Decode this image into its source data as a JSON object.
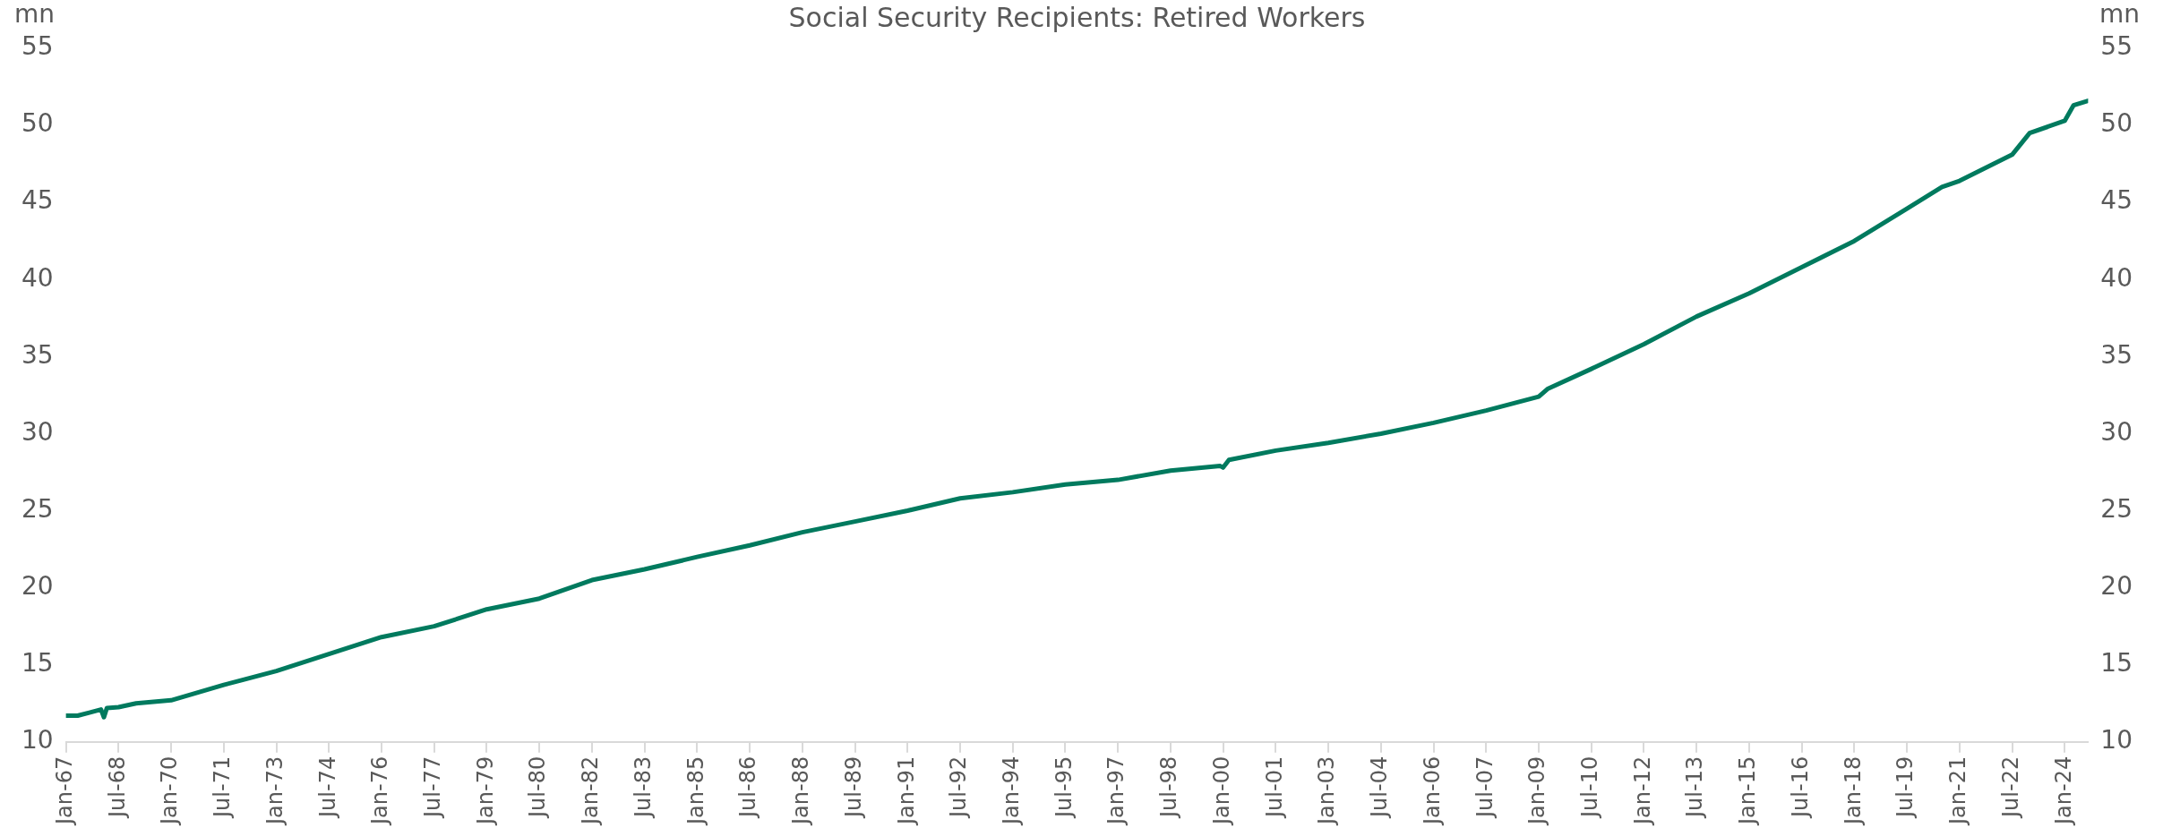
{
  "chart_data": {
    "type": "line",
    "title": "Social Security Recipients: Retired Workers",
    "ylabel": "mn",
    "y2label": "mn",
    "x": [
      "1967-01",
      "1967-05",
      "1967-09",
      "1968-01",
      "1968-02",
      "1968-03",
      "1968-07",
      "1969-01",
      "1970-01",
      "1971-07",
      "1973-01",
      "1974-07",
      "1976-01",
      "1977-07",
      "1979-01",
      "1980-07",
      "1982-01",
      "1983-07",
      "1985-01",
      "1986-07",
      "1988-01",
      "1989-07",
      "1991-01",
      "1992-07",
      "1994-01",
      "1995-07",
      "1997-01",
      "1998-07",
      "1999-12",
      "2000-01",
      "2000-03",
      "2001-07",
      "2003-01",
      "2004-07",
      "2006-01",
      "2007-07",
      "2009-01",
      "2009-04",
      "2010-07",
      "2012-01",
      "2013-07",
      "2015-01",
      "2016-07",
      "2018-01",
      "2019-07",
      "2020-07",
      "2021-01",
      "2022-07",
      "2023-01",
      "2024-01",
      "2024-04",
      "2024-09"
    ],
    "series": [
      {
        "color": "#007a5e",
        "values": [
          11.7,
          11.7,
          11.9,
          12.1,
          11.6,
          12.2,
          12.25,
          12.5,
          12.7,
          13.7,
          14.6,
          15.7,
          16.8,
          17.5,
          18.6,
          19.3,
          20.5,
          21.2,
          22.0,
          22.75,
          23.6,
          24.3,
          25.0,
          25.8,
          26.2,
          26.7,
          27.0,
          27.6,
          27.9,
          27.8,
          28.3,
          28.9,
          29.4,
          30.0,
          30.7,
          31.5,
          32.4,
          32.9,
          34.2,
          35.8,
          37.6,
          39.1,
          40.8,
          42.5,
          44.6,
          46.0,
          46.4,
          48.1,
          49.5,
          50.3,
          51.3,
          51.6
        ]
      }
    ],
    "xlim": [
      "1967-01",
      "2024-09"
    ],
    "xticks": [
      {
        "value": "1967-01",
        "label": "Jan-67"
      },
      {
        "value": "1968-07",
        "label": "Jul-68"
      },
      {
        "value": "1970-01",
        "label": "Jan-70"
      },
      {
        "value": "1971-07",
        "label": "Jul-71"
      },
      {
        "value": "1973-01",
        "label": "Jan-73"
      },
      {
        "value": "1974-07",
        "label": "Jul-74"
      },
      {
        "value": "1976-01",
        "label": "Jan-76"
      },
      {
        "value": "1977-07",
        "label": "Jul-77"
      },
      {
        "value": "1979-01",
        "label": "Jan-79"
      },
      {
        "value": "1980-07",
        "label": "Jul-80"
      },
      {
        "value": "1982-01",
        "label": "Jan-82"
      },
      {
        "value": "1983-07",
        "label": "Jul-83"
      },
      {
        "value": "1985-01",
        "label": "Jan-85"
      },
      {
        "value": "1986-07",
        "label": "Jul-86"
      },
      {
        "value": "1988-01",
        "label": "Jan-88"
      },
      {
        "value": "1989-07",
        "label": "Jul-89"
      },
      {
        "value": "1991-01",
        "label": "Jan-91"
      },
      {
        "value": "1992-07",
        "label": "Jul-92"
      },
      {
        "value": "1994-01",
        "label": "Jan-94"
      },
      {
        "value": "1995-07",
        "label": "Jul-95"
      },
      {
        "value": "1997-01",
        "label": "Jan-97"
      },
      {
        "value": "1998-07",
        "label": "Jul-98"
      },
      {
        "value": "2000-01",
        "label": "Jan-00"
      },
      {
        "value": "2001-07",
        "label": "Jul-01"
      },
      {
        "value": "2003-01",
        "label": "Jan-03"
      },
      {
        "value": "2004-07",
        "label": "Jul-04"
      },
      {
        "value": "2006-01",
        "label": "Jan-06"
      },
      {
        "value": "2007-07",
        "label": "Jul-07"
      },
      {
        "value": "2009-01",
        "label": "Jan-09"
      },
      {
        "value": "2010-07",
        "label": "Jul-10"
      },
      {
        "value": "2012-01",
        "label": "Jan-12"
      },
      {
        "value": "2013-07",
        "label": "Jul-13"
      },
      {
        "value": "2015-01",
        "label": "Jan-15"
      },
      {
        "value": "2016-07",
        "label": "Jul-16"
      },
      {
        "value": "2018-01",
        "label": "Jan-18"
      },
      {
        "value": "2019-07",
        "label": "Jul-19"
      },
      {
        "value": "2021-01",
        "label": "Jan-21"
      },
      {
        "value": "2022-07",
        "label": "Jul-22"
      },
      {
        "value": "2024-01",
        "label": "Jan-24"
      }
    ],
    "ylim": [
      10,
      55
    ],
    "yticks": [
      10,
      15,
      20,
      25,
      30,
      35,
      40,
      45,
      50,
      55
    ],
    "y2lim": [
      10,
      55
    ],
    "y2ticks": [
      10,
      15,
      20,
      25,
      30,
      35,
      40,
      45,
      50,
      55
    ],
    "grid": false,
    "legend": false,
    "marker": "none",
    "line_style": "solid"
  }
}
